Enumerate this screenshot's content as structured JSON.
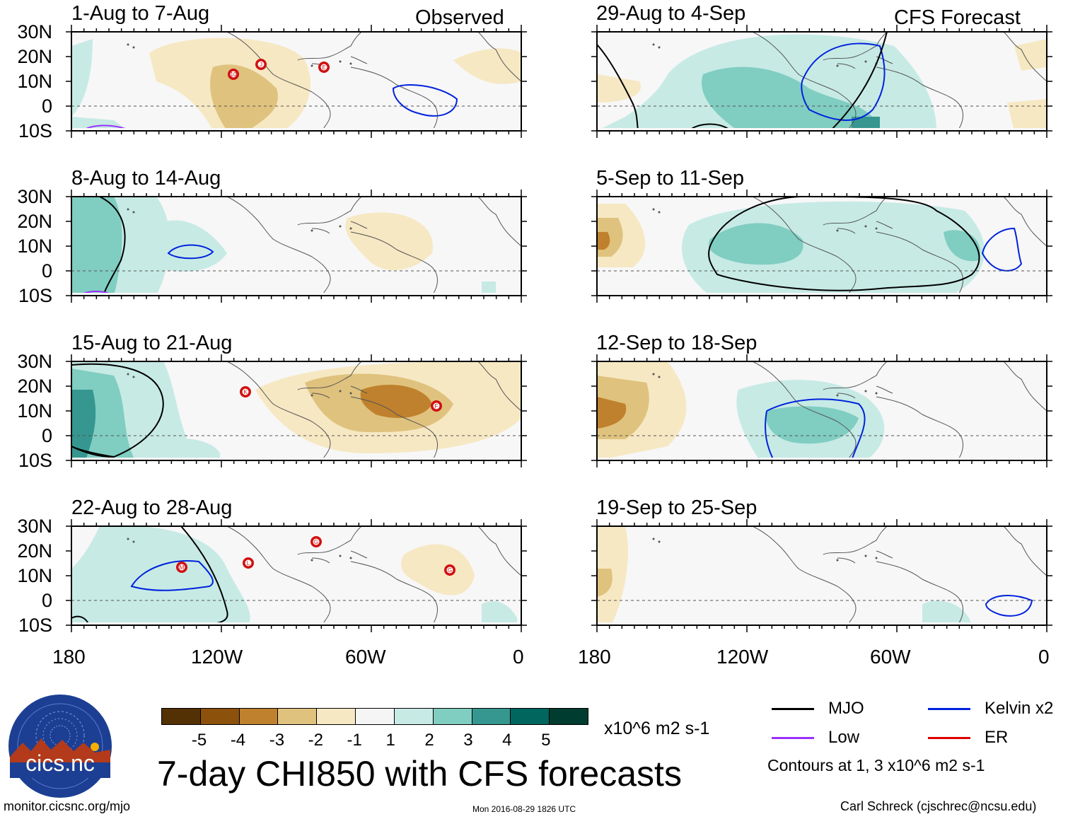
{
  "title": "7-day CHI850 with CFS forecasts",
  "observed_label": "Observed",
  "forecast_label": "CFS Forecast",
  "panels_left": [
    {
      "period": "1-Aug to 7-Aug"
    },
    {
      "period": "8-Aug to 14-Aug"
    },
    {
      "period": "15-Aug to 21-Aug"
    },
    {
      "period": "22-Aug to 28-Aug"
    }
  ],
  "panels_right": [
    {
      "period": "29-Aug to 4-Sep"
    },
    {
      "period": "5-Sep to 11-Sep"
    },
    {
      "period": "12-Sep to 18-Sep"
    },
    {
      "period": "19-Sep to 25-Sep"
    }
  ],
  "lat_labels": [
    "30N",
    "20N",
    "10N",
    "0",
    "10S"
  ],
  "lon_labels": [
    "180",
    "120W",
    "60W",
    "0"
  ],
  "storms": [
    {
      "panel": "1-Aug to 7-Aug",
      "ids": [
        "10",
        "J",
        "E"
      ]
    },
    {
      "panel": "15-Aug to 21-Aug",
      "ids": [
        "K",
        "F"
      ]
    },
    {
      "panel": "22-Aug to 28-Aug",
      "ids": [
        "M",
        "L",
        "G",
        "G"
      ]
    }
  ],
  "colorbar": {
    "ticks": [
      "-5",
      "-4",
      "-3",
      "-2",
      "-1",
      "1",
      "2",
      "3",
      "4",
      "5"
    ],
    "units": "x10^6 m2 s-1",
    "colors": [
      "#543005",
      "#8c510a",
      "#bf812d",
      "#dfc27d",
      "#f6e8c3",
      "#f5f5f5",
      "#c7eae5",
      "#80cdc1",
      "#35978f",
      "#01665e",
      "#003c30"
    ]
  },
  "legend": {
    "items": [
      {
        "label": "MJO",
        "color": "#000000"
      },
      {
        "label": "Kelvin x2",
        "color": "#0022dd"
      },
      {
        "label": "Low",
        "color": "#9b30ff"
      },
      {
        "label": "ER",
        "color": "#e00000"
      }
    ],
    "contours_note": "Contours at 1, 3 x10^6 m2 s-1"
  },
  "logo_text": "cics.nc",
  "footer": {
    "url": "monitor.cicsnc.org/mjo",
    "timestamp": "Mon 2016-08-29 1826 UTC",
    "author": "Carl Schreck (cjschrec@ncsu.edu)"
  }
}
